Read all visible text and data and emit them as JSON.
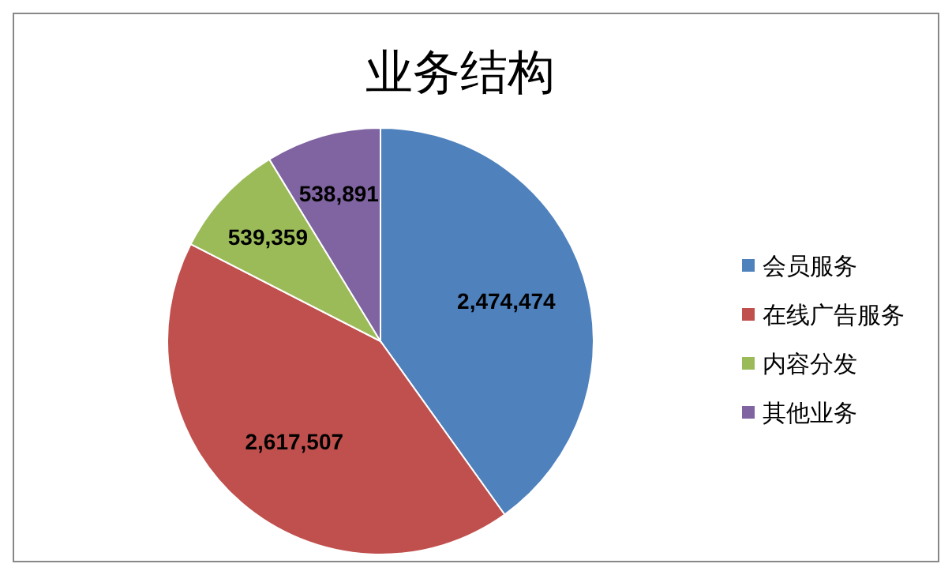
{
  "chart_data": {
    "type": "pie",
    "title": "业务结构",
    "categories": [
      "会员服务",
      "在线广告服务",
      "内容分发",
      "其他业务"
    ],
    "values": [
      2474474,
      2617507,
      539359,
      538891
    ],
    "colors": [
      "#4f81bd",
      "#c0504d",
      "#9bbb59",
      "#8064a2"
    ],
    "value_labels": [
      "2,474,474",
      "2,617,507",
      "539,359",
      "538,891"
    ],
    "legend": "right"
  }
}
